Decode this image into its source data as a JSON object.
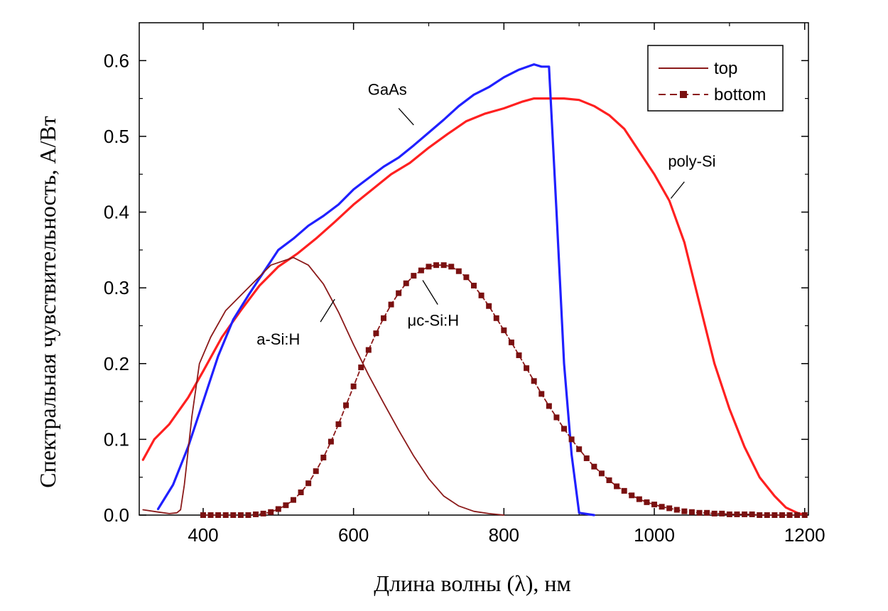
{
  "chart_data": {
    "type": "line",
    "xlabel": "Длина волны (λ), нм",
    "ylabel": "Спектральная чувствительность, А/Вт",
    "xlim": [
      315,
      1205
    ],
    "ylim": [
      0,
      0.65
    ],
    "x_ticks": [
      400,
      600,
      800,
      1000,
      1200
    ],
    "y_ticks": [
      0.0,
      0.1,
      0.2,
      0.3,
      0.4,
      0.5,
      0.6
    ],
    "x_tick_labels": [
      "400",
      "600",
      "800",
      "1000",
      "1200"
    ],
    "y_tick_labels": [
      "0.0",
      "0.1",
      "0.2",
      "0.3",
      "0.4",
      "0.5",
      "0.6"
    ],
    "grid": false,
    "legend": {
      "position": "top-right",
      "entries": [
        {
          "label": "top",
          "style": "solid",
          "color": "#8b1a1a"
        },
        {
          "label": "bottom",
          "style": "dashed-square-markers",
          "color": "#8b1a1a"
        }
      ]
    },
    "series": [
      {
        "color": "#ff2020",
        "style": "solid",
        "x": [
          320,
          335,
          355,
          380,
          400,
          425,
          450,
          475,
          500,
          525,
          550,
          575,
          600,
          625,
          650,
          675,
          700,
          725,
          750,
          775,
          800,
          825,
          840,
          860,
          880,
          900,
          920,
          940,
          960,
          980,
          1000,
          1020,
          1040,
          1060,
          1080,
          1100,
          1120,
          1140,
          1160,
          1175,
          1190,
          1200
        ],
        "y": [
          0.073,
          0.1,
          0.12,
          0.155,
          0.19,
          0.235,
          0.27,
          0.303,
          0.328,
          0.345,
          0.365,
          0.387,
          0.41,
          0.43,
          0.45,
          0.465,
          0.485,
          0.503,
          0.52,
          0.53,
          0.537,
          0.546,
          0.55,
          0.55,
          0.55,
          0.548,
          0.54,
          0.528,
          0.51,
          0.48,
          0.45,
          0.415,
          0.36,
          0.28,
          0.2,
          0.14,
          0.09,
          0.05,
          0.025,
          0.01,
          0.003,
          0.0
        ]
      },
      {
        "color": "#2020ff",
        "style": "solid",
        "x": [
          340,
          360,
          380,
          400,
          420,
          440,
          460,
          480,
          500,
          520,
          540,
          560,
          580,
          600,
          620,
          640,
          660,
          680,
          700,
          720,
          740,
          760,
          780,
          800,
          820,
          840,
          850,
          860,
          870,
          880,
          890,
          900,
          920
        ],
        "y": [
          0.008,
          0.04,
          0.09,
          0.15,
          0.21,
          0.258,
          0.29,
          0.32,
          0.35,
          0.365,
          0.382,
          0.395,
          0.41,
          0.43,
          0.445,
          0.46,
          0.472,
          0.488,
          0.505,
          0.522,
          0.54,
          0.555,
          0.565,
          0.578,
          0.588,
          0.595,
          0.592,
          0.592,
          0.4,
          0.2,
          0.08,
          0.003,
          0.0
        ]
      },
      {
        "color": "#8b1a1a",
        "style": "solid",
        "x": [
          320,
          340,
          355,
          365,
          370,
          375,
          385,
          395,
          410,
          430,
          450,
          470,
          490,
          505,
          520,
          540,
          560,
          580,
          600,
          620,
          640,
          660,
          680,
          700,
          720,
          740,
          760,
          780,
          800
        ],
        "y": [
          0.007,
          0.004,
          0.002,
          0.003,
          0.007,
          0.04,
          0.13,
          0.2,
          0.235,
          0.27,
          0.29,
          0.31,
          0.33,
          0.335,
          0.34,
          0.33,
          0.305,
          0.268,
          0.225,
          0.185,
          0.148,
          0.112,
          0.078,
          0.048,
          0.025,
          0.012,
          0.005,
          0.002,
          0.0
        ]
      },
      {
        "color": "#8b1a1a",
        "style": "dashed-square-markers",
        "x": [
          400,
          410,
          420,
          430,
          440,
          450,
          460,
          470,
          480,
          490,
          500,
          510,
          520,
          530,
          540,
          550,
          560,
          570,
          580,
          590,
          600,
          610,
          620,
          630,
          640,
          650,
          660,
          670,
          680,
          690,
          700,
          710,
          720,
          730,
          740,
          750,
          760,
          770,
          780,
          790,
          800,
          810,
          820,
          830,
          840,
          850,
          860,
          870,
          880,
          890,
          900,
          910,
          920,
          930,
          940,
          950,
          960,
          970,
          980,
          990,
          1000,
          1010,
          1020,
          1030,
          1040,
          1050,
          1060,
          1070,
          1080,
          1090,
          1100,
          1110,
          1120,
          1130,
          1140,
          1150,
          1160,
          1170,
          1180,
          1190,
          1200
        ],
        "y": [
          0.0,
          0.0,
          0.0,
          0.0,
          0.0,
          0.0,
          0.0,
          0.001,
          0.002,
          0.004,
          0.008,
          0.013,
          0.02,
          0.03,
          0.042,
          0.058,
          0.076,
          0.097,
          0.12,
          0.145,
          0.17,
          0.195,
          0.218,
          0.24,
          0.26,
          0.278,
          0.293,
          0.306,
          0.316,
          0.323,
          0.328,
          0.33,
          0.33,
          0.328,
          0.322,
          0.314,
          0.303,
          0.29,
          0.276,
          0.26,
          0.244,
          0.228,
          0.211,
          0.194,
          0.177,
          0.16,
          0.144,
          0.129,
          0.114,
          0.1,
          0.087,
          0.075,
          0.064,
          0.055,
          0.046,
          0.038,
          0.032,
          0.026,
          0.021,
          0.017,
          0.014,
          0.011,
          0.009,
          0.007,
          0.005,
          0.004,
          0.003,
          0.003,
          0.002,
          0.002,
          0.001,
          0.001,
          0.001,
          0.001,
          0.0,
          0.0,
          0.0,
          0.0,
          0.0,
          0.0,
          0.0
        ]
      }
    ],
    "annotations": [
      {
        "text": "GaAs",
        "x": 645,
        "y": 0.555,
        "pointer": [
          [
            660,
            0.537
          ],
          [
            680,
            0.515
          ]
        ]
      },
      {
        "text": "poly-Si",
        "x": 1050,
        "y": 0.46,
        "pointer": [
          [
            1040,
            0.44
          ],
          [
            1022,
            0.418
          ]
        ]
      },
      {
        "text": "a-Si:H",
        "x": 500,
        "y": 0.225,
        "pointer": [
          [
            556,
            0.255
          ],
          [
            575,
            0.285
          ]
        ]
      },
      {
        "text": "μc-Si:H",
        "x": 706,
        "y": 0.25,
        "pointer": [
          [
            712,
            0.278
          ],
          [
            692,
            0.31
          ]
        ]
      }
    ]
  }
}
